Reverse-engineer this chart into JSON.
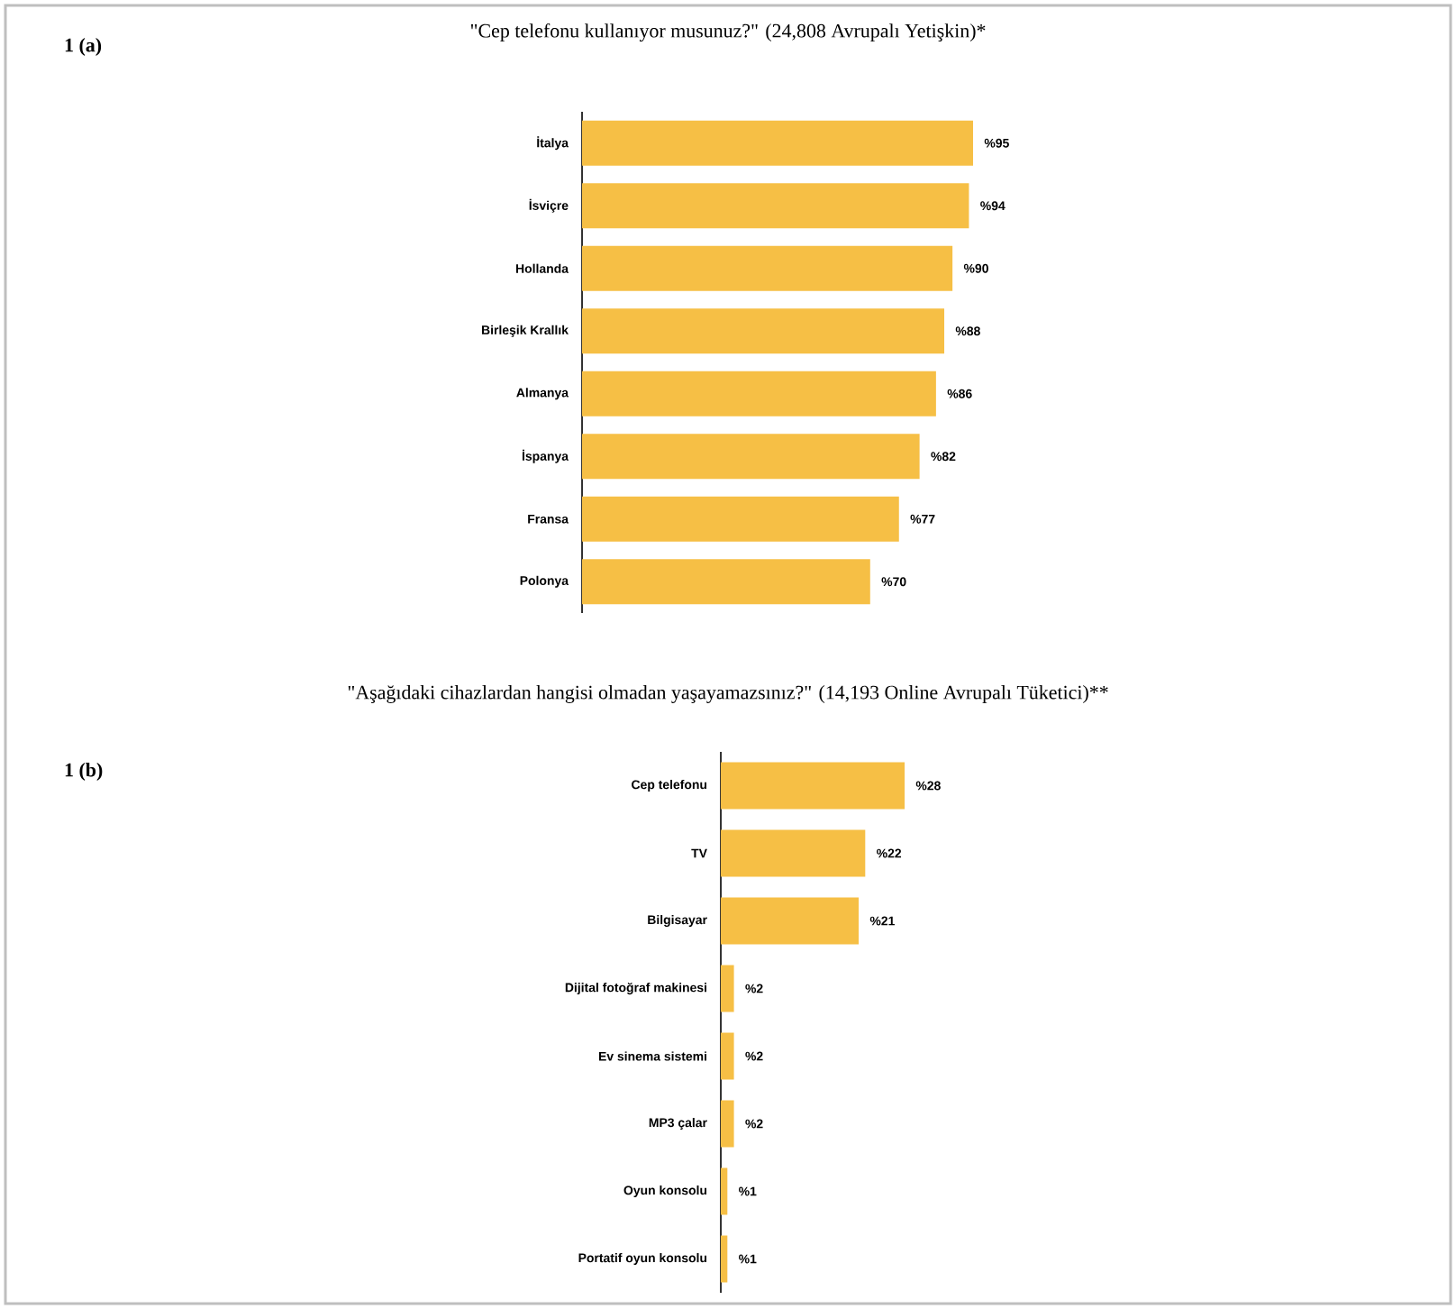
{
  "chart_data": [
    {
      "type": "bar",
      "orientation": "horizontal",
      "title": "\"Cep telefonu kullanıyor musunuz?\" (24,808 Avrupalı Yetişkin)*",
      "annotations": [
        "1 (a)"
      ],
      "categories": [
        "İtalya",
        "İsviçre",
        "Hollanda",
        "Birleşik Krallık",
        "Almanya",
        "İspanya",
        "Fransa",
        "Polonya"
      ],
      "values": [
        95,
        94,
        90,
        88,
        86,
        82,
        77,
        70
      ],
      "value_labels": [
        "%95",
        "%94",
        "%90",
        "%88",
        "%86",
        "%82",
        "%77",
        "%70"
      ],
      "color": "#f6bf45"
    },
    {
      "type": "bar",
      "orientation": "horizontal",
      "title": "\"Aşağıdaki cihazlardan hangisi olmadan yaşayamazsınız?\" (14,193 Online Avrupalı Tüketici)**",
      "annotations": [
        "1 (b)"
      ],
      "categories": [
        "Cep telefonu",
        "TV",
        "Bilgisayar",
        "Dijital fotoğraf makinesi",
        "Ev sinema sistemi",
        "MP3 çalar",
        "Oyun konsolu",
        "Portatif oyun konsolu"
      ],
      "values": [
        28,
        22,
        21,
        2,
        2,
        2,
        1,
        1
      ],
      "value_labels": [
        "%28",
        "%22",
        "%21",
        "%2",
        "%2",
        "%2",
        "%1",
        "%1"
      ],
      "color": "#f6bf45"
    }
  ]
}
